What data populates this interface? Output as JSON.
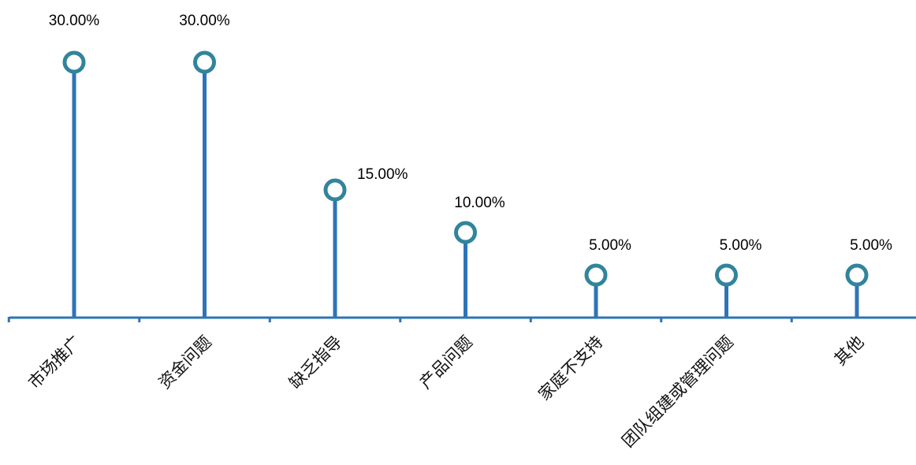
{
  "chart_data": {
    "type": "lollipop",
    "categories": [
      "市场推广",
      "资金问题",
      "缺乏指导",
      "产品问题",
      "家庭不支持",
      "团队组建或管理问题",
      "其他"
    ],
    "values": [
      30.0,
      30.0,
      15.0,
      10.0,
      5.0,
      5.0,
      5.0
    ],
    "value_labels": [
      "30.00%",
      "30.00%",
      "15.00%",
      "10.00%",
      "5.00%",
      "5.00%",
      "5.00%"
    ],
    "unit": "%",
    "ylim": [
      0,
      30
    ],
    "grid": false,
    "legend": "none"
  },
  "colors": {
    "stem": "#2e75b6",
    "marker_stroke": "#31849b",
    "marker_fill": "#ffffff",
    "axis": "#2e75b6"
  }
}
